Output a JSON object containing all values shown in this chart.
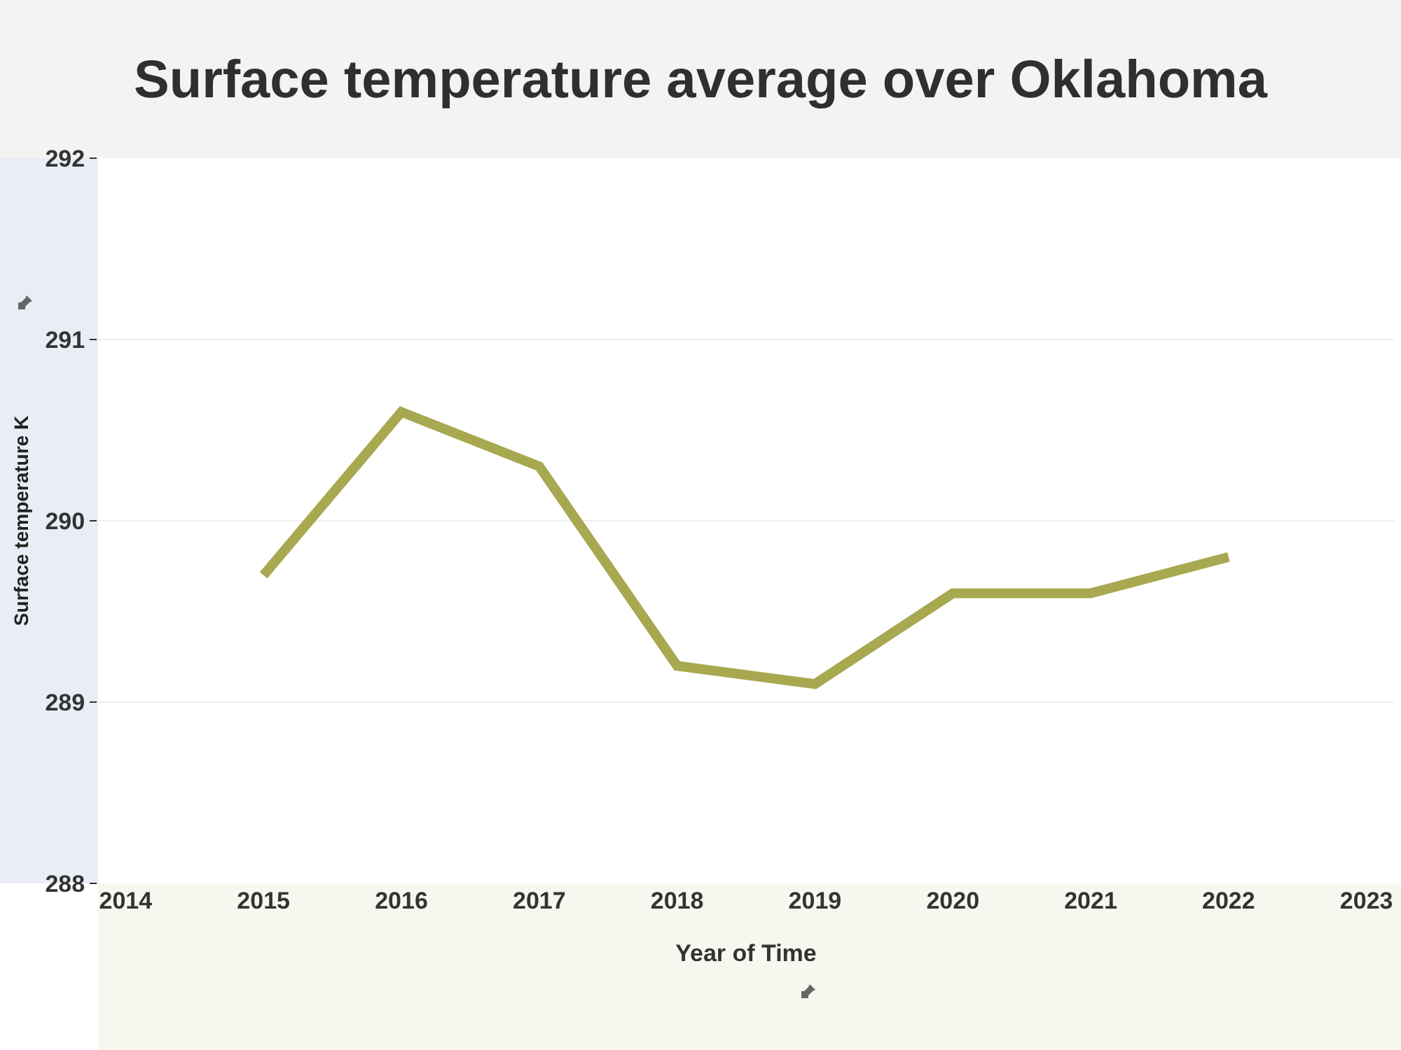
{
  "chart_data": {
    "type": "line",
    "title": "Surface temperature average over Oklahoma",
    "xlabel": "Year of Time",
    "ylabel": "Surface temperature K",
    "x": [
      2015,
      2016,
      2017,
      2018,
      2019,
      2020,
      2021,
      2022
    ],
    "series": [
      {
        "color": "#a8a850",
        "values": [
          289.7,
          290.6,
          290.3,
          289.2,
          289.1,
          289.6,
          289.6,
          289.8
        ]
      }
    ],
    "xlim": [
      2013.8,
      2023.2
    ],
    "xticks": [
      2014,
      2015,
      2016,
      2017,
      2018,
      2019,
      2020,
      2021,
      2022,
      2023
    ],
    "ylim": [
      288,
      292
    ],
    "yticks": [
      288,
      289,
      290,
      291,
      292
    ],
    "grid": "y",
    "legend": false,
    "marker": "none",
    "line_style": "solid"
  }
}
